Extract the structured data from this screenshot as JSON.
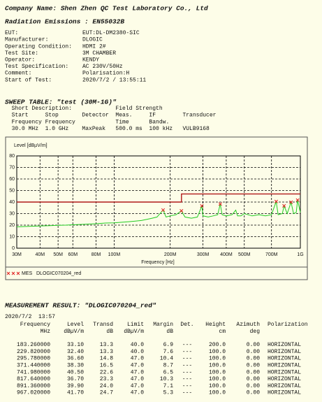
{
  "header": {
    "company": "Company Name: Shen Zhen QC Test Laboratory Co., Ltd",
    "test": "Radiation Emissions : EN55032B"
  },
  "info": [
    [
      "EUT:",
      "EUT:DL-DM2380-SIC"
    ],
    [
      "Manufacturer:",
      "DLOGIC"
    ],
    [
      "Operating Condition:",
      "HDMI 2#"
    ],
    [
      "Test Site:",
      "3M CHAMBER"
    ],
    [
      "Operator:",
      "KENDY"
    ],
    [
      "Test Specification:",
      "AC 230V/50Hz"
    ],
    [
      "Comment:",
      "Polarisation:H"
    ],
    [
      "Start of Test:",
      "2020/7/2 / 13:55:11"
    ]
  ],
  "sweep": {
    "title": "SWEEP TABLE: \"test (30M-1G)\"",
    "lines": [
      "  Short Description:             Field Strength",
      "  Start     Stop       Detector  Meas.     IF        Transducer",
      "  Frequency Frequency            Time      Bandw.",
      "  30.0 MHz  1.0 GHz    MaxPeak   500.0 ms  100 kHz   VULB9168"
    ]
  },
  "chart_data": {
    "type": "line",
    "ylabel": "Level [dBµV/m]",
    "xlabel": "Frequency [Hz]",
    "xscale": "log",
    "grid": true,
    "xlim": [
      30000000,
      1000000000
    ],
    "ylim": [
      0,
      80
    ],
    "yticks": [
      0,
      10,
      20,
      30,
      40,
      50,
      60,
      70,
      80
    ],
    "xticks": [
      {
        "value": 30000000,
        "label": "30M"
      },
      {
        "value": 40000000,
        "label": "40M"
      },
      {
        "value": 50000000,
        "label": "50M"
      },
      {
        "value": 60000000,
        "label": "60M"
      },
      {
        "value": 80000000,
        "label": "80M"
      },
      {
        "value": 100000000,
        "label": "100M"
      },
      {
        "value": 200000000,
        "label": "200M"
      },
      {
        "value": 300000000,
        "label": "300M"
      },
      {
        "value": 400000000,
        "label": "400M"
      },
      {
        "value": 500000000,
        "label": "500M"
      },
      {
        "value": 700000000,
        "label": "700M"
      },
      {
        "value": 1000000000,
        "label": "1G"
      }
    ],
    "legend_file": "DLOGIC070204_red",
    "series": [
      {
        "color": "#b01818",
        "x": [
          30000000,
          230000000,
          230000000,
          1000000000
        ],
        "values": [
          40,
          40,
          47,
          47
        ]
      },
      {
        "color": "#22cc22",
        "x": [
          30000000,
          33000000,
          36000000,
          40000000,
          45000000,
          50000000,
          55000000,
          60000000,
          70000000,
          80000000,
          90000000,
          100000000,
          110000000,
          120000000,
          130000000,
          140000000,
          150000000,
          160000000,
          170000000,
          183260000,
          190000000,
          200000000,
          215000000,
          229820000,
          240000000,
          260000000,
          280000000,
          295780000,
          300000000,
          320000000,
          340000000,
          360000000,
          371440000,
          380000000,
          400000000,
          430000000,
          450000000,
          460000000,
          480000000,
          500000000,
          550000000,
          600000000,
          650000000,
          700000000,
          741980000,
          760000000,
          800000000,
          817640000,
          850000000,
          891360000,
          920000000,
          950000000,
          967020000,
          1000000000
        ],
        "values": [
          18.5,
          18.8,
          19,
          19.2,
          19.5,
          19.8,
          20,
          20.3,
          20.8,
          21.2,
          21.8,
          22,
          22.5,
          23,
          23.5,
          24,
          25,
          26,
          27,
          33.1,
          27,
          28,
          29,
          32.4,
          27,
          26,
          27,
          36.6,
          28,
          27,
          28,
          29,
          38.3,
          29,
          28,
          29,
          33,
          28,
          28,
          30,
          28,
          29,
          28,
          29,
          40.5,
          29,
          30,
          36.7,
          30,
          39.9,
          30,
          31,
          41.7,
          31
        ]
      },
      {
        "name": "MES",
        "type": "scatter",
        "color": "#e02020",
        "x": [
          183260000,
          229820000,
          295780000,
          371440000,
          741980000,
          817640000,
          891360000,
          967020000
        ],
        "values": [
          33.1,
          32.4,
          36.6,
          38.3,
          40.5,
          36.7,
          39.9,
          41.7
        ]
      }
    ]
  },
  "measurement": {
    "title": "MEASUREMENT RESULT: \"DLOGIC070204_red\"",
    "date": "2020/7/2  13:57",
    "columns": [
      [
        "Frequency",
        "MHz"
      ],
      [
        "Level",
        "dBµV/m"
      ],
      [
        "Transd",
        "dB"
      ],
      [
        "Limit",
        "dBµV/m"
      ],
      [
        "Margin",
        "dB"
      ],
      [
        "Det."
      ],
      [
        "Height",
        "cm"
      ],
      [
        "Azimuth",
        "deg"
      ],
      [
        "Polarization"
      ]
    ],
    "rows": [
      [
        "183.260000",
        "33.10",
        "13.3",
        "40.0",
        "6.9",
        "---",
        "200.0",
        "0.00",
        "HORIZONTAL"
      ],
      [
        "229.820000",
        "32.40",
        "13.3",
        "40.0",
        "7.6",
        "---",
        "100.0",
        "0.00",
        "HORIZONTAL"
      ],
      [
        "295.780000",
        "36.60",
        "14.8",
        "47.0",
        "10.4",
        "---",
        "100.0",
        "0.00",
        "HORIZONTAL"
      ],
      [
        "371.440000",
        "38.30",
        "16.5",
        "47.0",
        "8.7",
        "---",
        "100.0",
        "0.00",
        "HORIZONTAL"
      ],
      [
        "741.980000",
        "40.50",
        "22.6",
        "47.0",
        "6.5",
        "---",
        "100.0",
        "0.00",
        "HORIZONTAL"
      ],
      [
        "817.640000",
        "36.70",
        "23.3",
        "47.0",
        "10.3",
        "---",
        "100.0",
        "0.00",
        "HORIZONTAL"
      ],
      [
        "891.360000",
        "39.90",
        "24.0",
        "47.0",
        "7.1",
        "---",
        "100.0",
        "0.00",
        "HORIZONTAL"
      ],
      [
        "967.020000",
        "41.70",
        "24.7",
        "47.0",
        "5.3",
        "---",
        "100.0",
        "0.00",
        "HORIZONTAL"
      ]
    ]
  }
}
